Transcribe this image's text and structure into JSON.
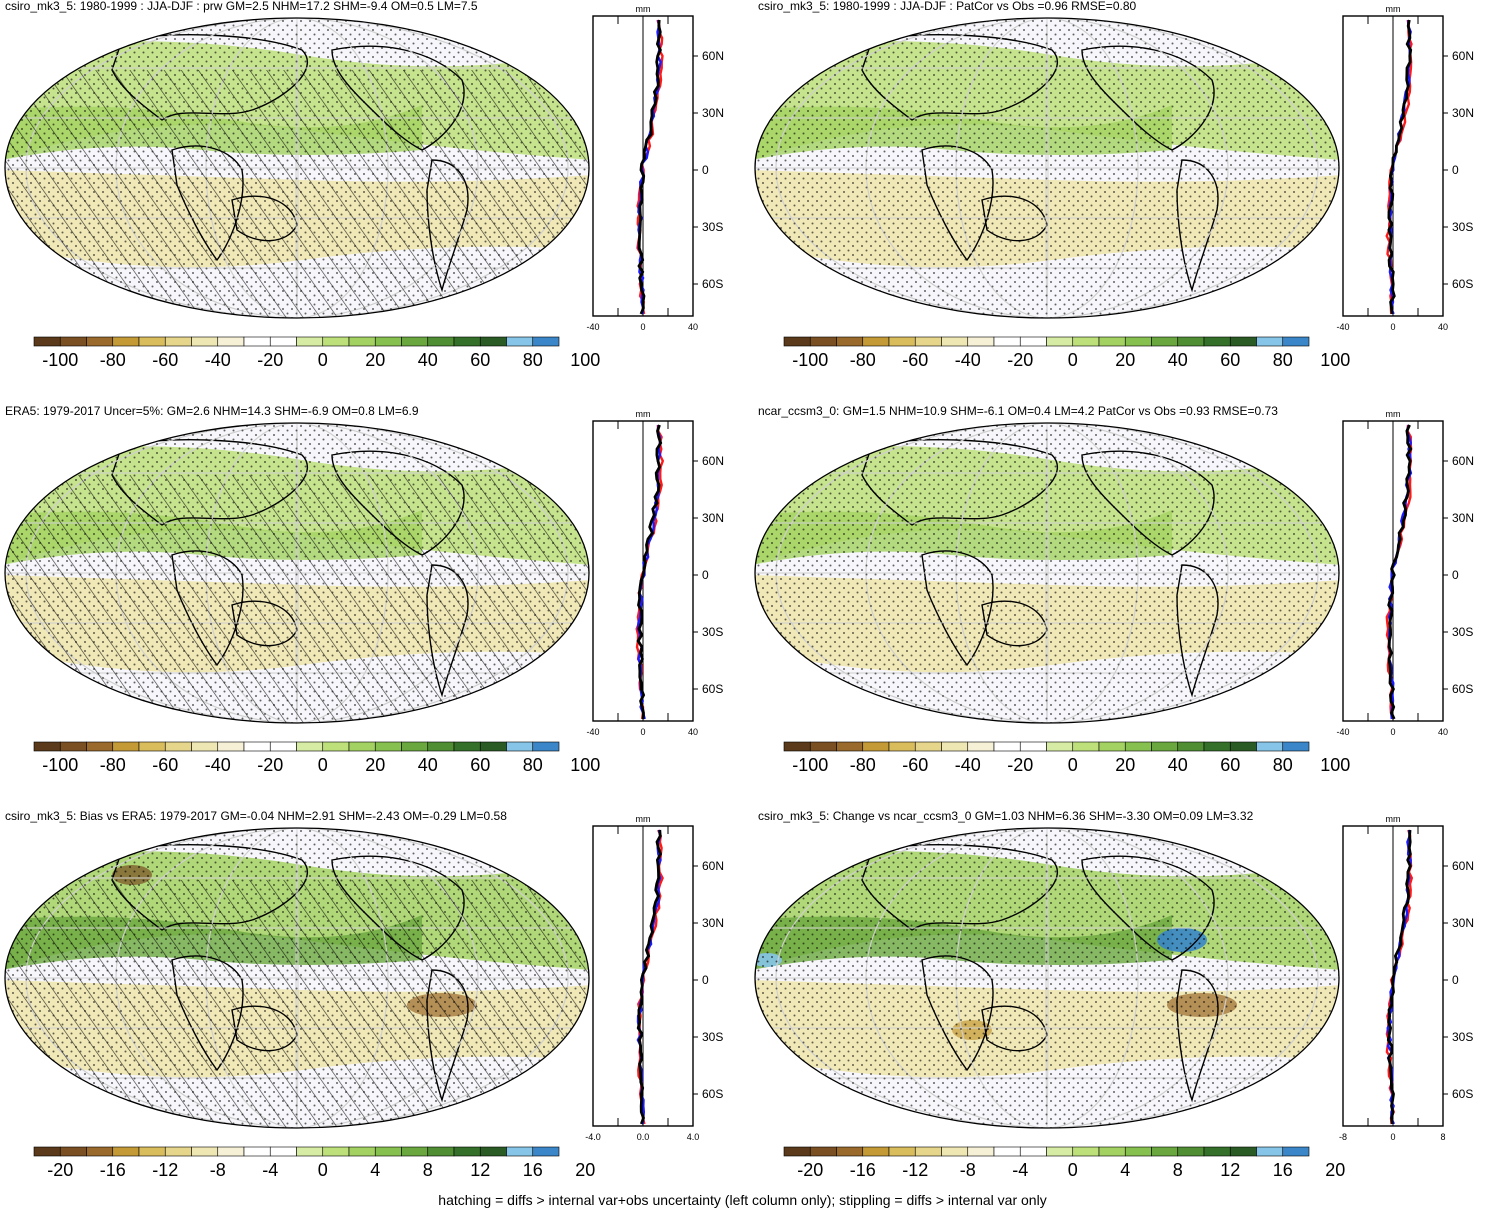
{
  "panels": [
    {
      "id": "p1",
      "title": "csiro_mk3_5: 1980-1999 : JJA-DJF : prw GM=2.5 NHM=17.2 SHM=-9.4 OM=0.5 LM=7.5",
      "hatched": true,
      "zonal_xticks": [
        "-40",
        "0",
        "40"
      ],
      "colorbar_labels": [
        "-100",
        "-80",
        "-60",
        "-40",
        "-20",
        "0",
        "20",
        "40",
        "60",
        "80",
        "100"
      ]
    },
    {
      "id": "p2",
      "title": "csiro_mk3_5: 1980-1999 : JJA-DJF : PatCor vs Obs =0.96 RMSE=0.80",
      "hatched": false,
      "zonal_xticks": [
        "-40",
        "0",
        "40"
      ],
      "colorbar_labels": [
        "-100",
        "-80",
        "-60",
        "-40",
        "-20",
        "0",
        "20",
        "40",
        "60",
        "80",
        "100"
      ]
    },
    {
      "id": "p3",
      "title": "ERA5: 1979-2017 Uncer=5%: GM=2.6 NHM=14.3 SHM=-6.9 OM=0.8 LM=6.9",
      "hatched": true,
      "zonal_xticks": [
        "-40",
        "0",
        "40"
      ],
      "colorbar_labels": [
        "-100",
        "-80",
        "-60",
        "-40",
        "-20",
        "0",
        "20",
        "40",
        "60",
        "80",
        "100"
      ]
    },
    {
      "id": "p4",
      "title": "ncar_ccsm3_0: GM=1.5 NHM=10.9 SHM=-6.1 OM=0.4 LM=4.2 PatCor vs Obs =0.93 RMSE=0.73",
      "hatched": false,
      "zonal_xticks": [
        "-40",
        "0",
        "40"
      ],
      "colorbar_labels": [
        "-100",
        "-80",
        "-60",
        "-40",
        "-20",
        "0",
        "20",
        "40",
        "60",
        "80",
        "100"
      ]
    },
    {
      "id": "p5",
      "title": "csiro_mk3_5: Bias vs ERA5: 1979-2017 GM=-0.04 NHM=2.91 SHM=-2.43 OM=-0.29 LM=0.58",
      "hatched": true,
      "zonal_xticks": [
        "-4.0",
        "0.0",
        "4.0"
      ],
      "colorbar_labels": [
        "-20",
        "-16",
        "-12",
        "-8",
        "-4",
        "0",
        "4",
        "8",
        "12",
        "16",
        "20"
      ]
    },
    {
      "id": "p6",
      "title": "csiro_mk3_5: Change vs ncar_ccsm3_0 GM=1.03 NHM=6.36 SHM=-3.30 OM=0.09 LM=3.32",
      "hatched": false,
      "zonal_xticks": [
        "-8",
        "0",
        "8"
      ],
      "colorbar_labels": [
        "-20",
        "-16",
        "-12",
        "-8",
        "-4",
        "0",
        "4",
        "8",
        "12",
        "16",
        "20"
      ]
    }
  ],
  "zonal_unit": "mm",
  "lat_labels": [
    "60N",
    "30N",
    "0",
    "30S",
    "60S"
  ],
  "colorbar_colors": [
    "#5a3a1a",
    "#7a4f22",
    "#9a6a2c",
    "#c49a36",
    "#d9bd5c",
    "#e6d68c",
    "#efe7b3",
    "#f6f1d6",
    "#ffffff",
    "#ffffff",
    "#d6eba3",
    "#bde07a",
    "#a3d262",
    "#86c04e",
    "#6aa83f",
    "#4f8e33",
    "#35702a",
    "#2a5b24",
    "#86c5e8",
    "#3a86c8"
  ],
  "series_colors": {
    "red": "#ff1a1a",
    "blue": "#1a1aff",
    "black": "#000000"
  },
  "footer": "hatching = diffs > internal var+obs uncertainty (left column only); stippling = diffs > internal var only"
}
